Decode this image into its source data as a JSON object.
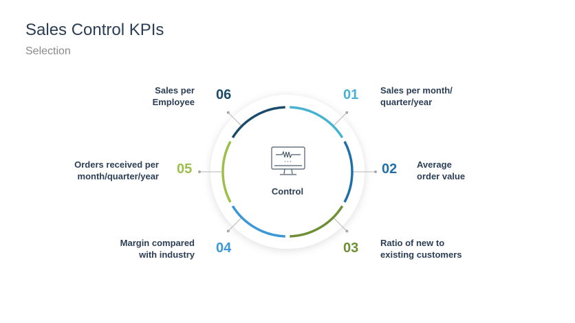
{
  "header": {
    "title": "Sales Control KPIs",
    "subtitle": "Selection"
  },
  "center": {
    "label": "Control",
    "icon": "monitor-pulse-icon"
  },
  "kpis": [
    {
      "num": "01",
      "label_lines": [
        "Sales per month/",
        "quarter/year"
      ],
      "color": "#45b3d0"
    },
    {
      "num": "02",
      "label_lines": [
        "Average",
        "order value"
      ],
      "color": "#1f6fa8"
    },
    {
      "num": "03",
      "label_lines": [
        "Ratio of new to",
        "existing customers"
      ],
      "color": "#6e8f35"
    },
    {
      "num": "04",
      "label_lines": [
        "Margin compared",
        "with industry"
      ],
      "color": "#3a98d8"
    },
    {
      "num": "05",
      "label_lines": [
        "Orders received per",
        "month/quarter/year"
      ],
      "color": "#9cbf4a"
    },
    {
      "num": "06",
      "label_lines": [
        "Sales per",
        "Employee"
      ],
      "color": "#1b4a6b"
    }
  ]
}
